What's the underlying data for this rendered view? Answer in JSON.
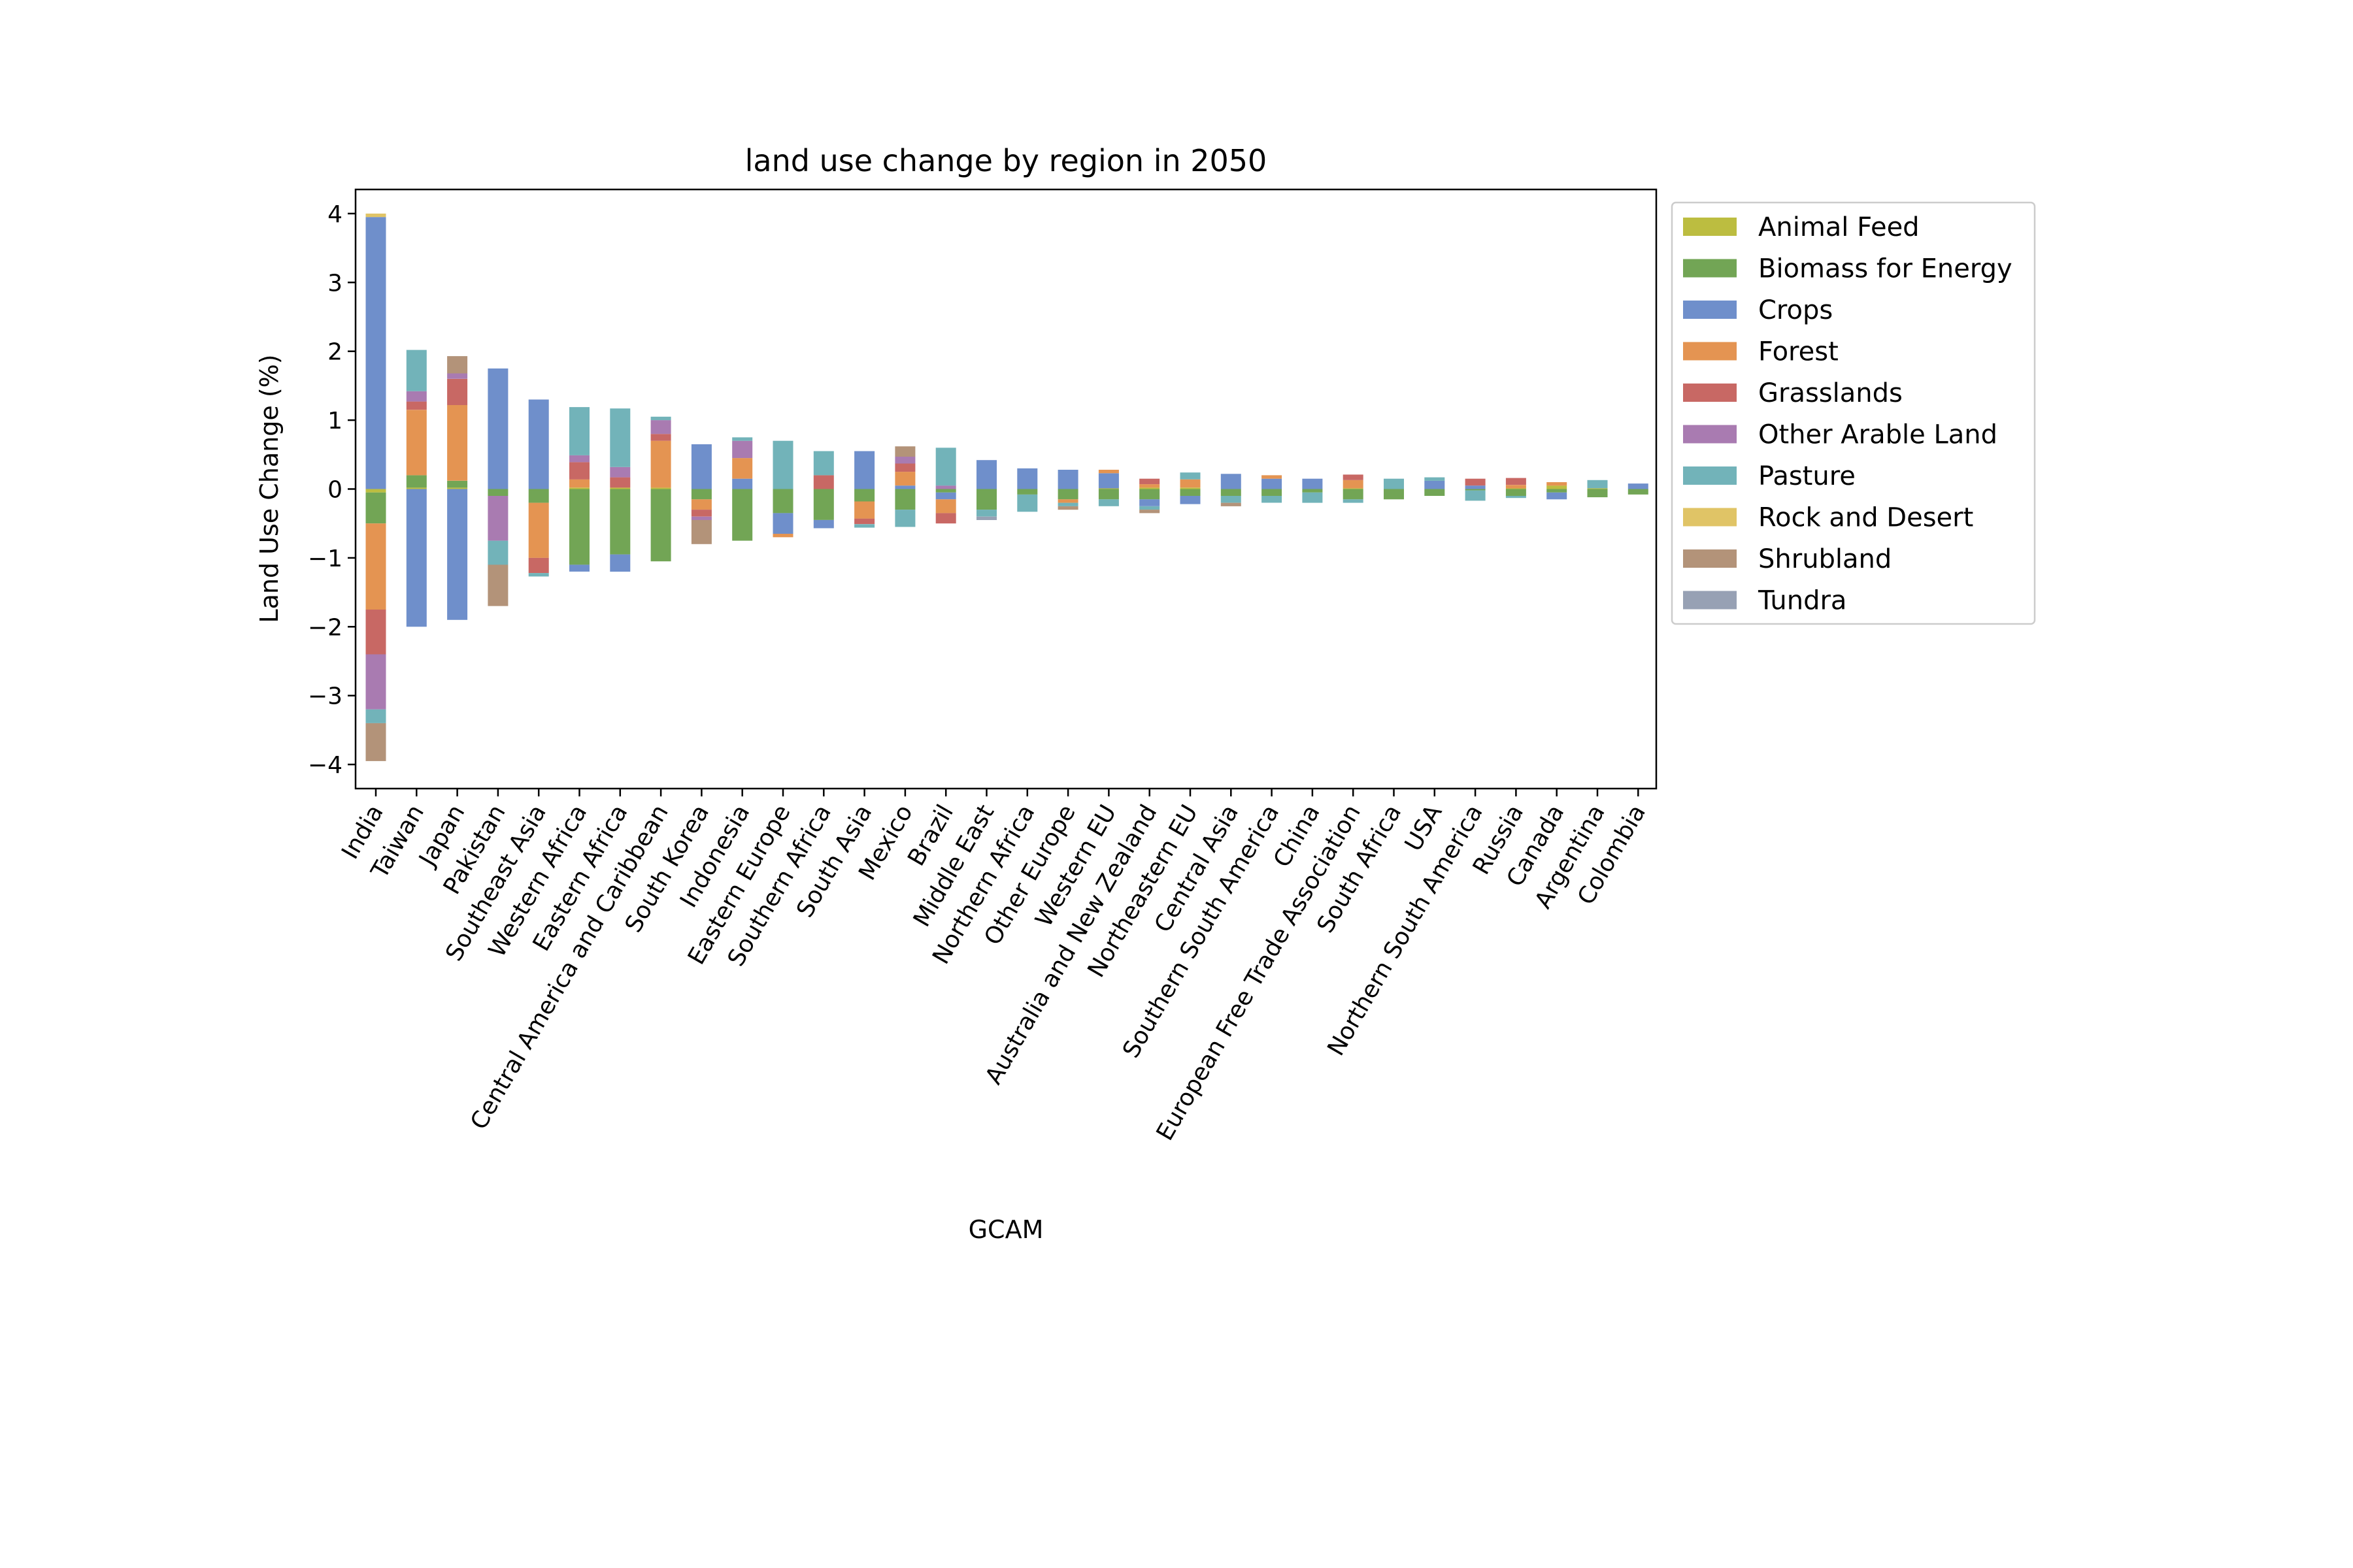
{
  "chart_data": {
    "type": "bar",
    "stacked": true,
    "title": "land use change by region in 2050",
    "xlabel": "GCAM",
    "ylabel": "Land Use Change (%)",
    "ylim": [
      -4.35,
      4.35
    ],
    "yticks": [
      -4,
      -3,
      -2,
      -1,
      0,
      1,
      2,
      3,
      4
    ],
    "ytick_labels": [
      "−4",
      "−3",
      "−2",
      "−1",
      "0",
      "1",
      "2",
      "3",
      "4"
    ],
    "grid": false,
    "legend_position": "outside-right-top",
    "categories": [
      "India",
      "Taiwan",
      "Japan",
      "Pakistan",
      "Southeast Asia",
      "Western Africa",
      "Eastern Africa",
      "Central America and Caribbean",
      "South Korea",
      "Indonesia",
      "Eastern Europe",
      "Southern Africa",
      "South Asia",
      "Mexico",
      "Brazil",
      "Middle East",
      "Northern Africa",
      "Other Europe",
      "Western EU",
      "Australia and New Zealand",
      "Northeastern EU",
      "Central Asia",
      "Southern South America",
      "China",
      "European Free Trade Association",
      "South Africa",
      "USA",
      "Northern South America",
      "Russia",
      "Canada",
      "Argentina",
      "Colombia"
    ],
    "series": [
      {
        "name": "Animal Feed",
        "color": "#bcbd40",
        "values": [
          -0.05,
          0.02,
          0.02,
          0.0,
          0.0,
          0.02,
          0.02,
          0.02,
          0.0,
          0.0,
          0.0,
          0.0,
          0.0,
          0.0,
          0.0,
          0.0,
          0.0,
          0.0,
          0.01,
          0.02,
          0.02,
          0.0,
          0.0,
          0.0,
          0.01,
          0.0,
          0.0,
          0.0,
          0.01,
          0.05,
          0.01,
          0.0
        ]
      },
      {
        "name": "Biomass for Energy",
        "color": "#72a555",
        "values": [
          -0.45,
          0.18,
          0.1,
          -0.1,
          -0.2,
          -1.1,
          -0.95,
          -1.05,
          -0.15,
          -0.75,
          -0.35,
          -0.45,
          -0.18,
          -0.3,
          -0.05,
          -0.3,
          -0.08,
          -0.15,
          -0.15,
          -0.15,
          -0.1,
          -0.1,
          -0.1,
          -0.05,
          -0.15,
          -0.15,
          -0.1,
          -0.02,
          -0.1,
          -0.05,
          -0.12,
          -0.08
        ]
      },
      {
        "name": "Crops",
        "color": "#6f8fcb",
        "values": [
          3.95,
          -2.0,
          -1.9,
          1.75,
          1.3,
          -0.1,
          -0.25,
          0.0,
          0.65,
          0.15,
          -0.3,
          -0.12,
          0.55,
          0.05,
          -0.1,
          0.42,
          0.3,
          0.28,
          0.22,
          -0.1,
          -0.12,
          0.22,
          0.15,
          0.15,
          0.0,
          0.0,
          0.12,
          0.05,
          0.0,
          -0.1,
          0.0,
          0.08
        ]
      },
      {
        "name": "Forest",
        "color": "#e49452",
        "values": [
          -1.25,
          0.95,
          1.1,
          0.0,
          -0.8,
          0.12,
          0.0,
          0.68,
          -0.15,
          0.3,
          -0.05,
          0.0,
          -0.25,
          0.2,
          -0.2,
          0.0,
          0.0,
          -0.05,
          0.05,
          0.05,
          0.12,
          0.0,
          0.05,
          0.0,
          0.12,
          0.0,
          0.0,
          0.0,
          0.05,
          0.05,
          0.0,
          0.0
        ]
      },
      {
        "name": "Grasslands",
        "color": "#c86864",
        "values": [
          -0.65,
          0.12,
          0.38,
          0.0,
          -0.22,
          0.25,
          0.15,
          0.1,
          -0.1,
          0.0,
          0.0,
          0.2,
          -0.08,
          0.12,
          -0.15,
          0.0,
          0.0,
          0.0,
          0.0,
          0.08,
          0.0,
          0.0,
          0.0,
          0.0,
          0.08,
          0.0,
          0.0,
          0.1,
          0.1,
          0.0,
          0.0,
          0.0
        ]
      },
      {
        "name": "Other Arable Land",
        "color": "#a97bb1",
        "values": [
          -0.8,
          0.15,
          0.08,
          -0.65,
          0.0,
          0.1,
          0.15,
          0.2,
          -0.05,
          0.25,
          0.0,
          0.0,
          0.0,
          0.1,
          0.05,
          0.0,
          0.0,
          0.0,
          0.0,
          0.0,
          0.0,
          0.0,
          0.0,
          0.0,
          0.0,
          0.0,
          0.0,
          0.0,
          0.0,
          0.0,
          0.0,
          0.0
        ]
      },
      {
        "name": "Pasture",
        "color": "#72b3b9",
        "values": [
          -0.2,
          0.6,
          0.0,
          -0.35,
          -0.05,
          0.7,
          0.85,
          0.05,
          0.0,
          0.05,
          0.7,
          0.35,
          -0.05,
          -0.25,
          0.55,
          -0.1,
          -0.25,
          -0.05,
          -0.1,
          -0.05,
          0.1,
          -0.1,
          -0.1,
          -0.15,
          -0.05,
          0.15,
          0.05,
          -0.15,
          -0.03,
          0.0,
          0.12,
          0.0
        ]
      },
      {
        "name": "Rock and Desert",
        "color": "#e0c466",
        "values": [
          0.05,
          0.0,
          0.0,
          0.0,
          0.0,
          0.0,
          0.0,
          0.0,
          0.0,
          0.0,
          0.0,
          0.0,
          0.0,
          0.0,
          0.0,
          0.0,
          0.0,
          0.0,
          0.0,
          0.0,
          0.0,
          0.0,
          0.0,
          0.0,
          0.0,
          0.0,
          0.0,
          0.0,
          0.0,
          0.0,
          0.0,
          0.0
        ]
      },
      {
        "name": "Shrubland",
        "color": "#b39379",
        "values": [
          -0.55,
          0.0,
          0.25,
          -0.6,
          0.0,
          0.0,
          0.0,
          0.0,
          -0.35,
          0.0,
          0.0,
          0.0,
          0.0,
          0.15,
          0.0,
          0.0,
          0.0,
          -0.05,
          0.0,
          -0.05,
          0.0,
          -0.05,
          0.0,
          0.0,
          0.0,
          0.0,
          0.0,
          0.0,
          0.0,
          0.0,
          0.0,
          0.0
        ]
      },
      {
        "name": "Tundra",
        "color": "#97a1b4",
        "values": [
          0.0,
          0.0,
          0.0,
          0.0,
          0.0,
          0.0,
          0.0,
          0.0,
          0.0,
          0.0,
          0.0,
          0.0,
          0.0,
          0.0,
          0.0,
          -0.05,
          0.0,
          0.0,
          0.0,
          0.0,
          0.0,
          0.0,
          0.0,
          0.0,
          0.0,
          0.0,
          0.0,
          0.0,
          0.0,
          0.0,
          0.0,
          0.0
        ]
      }
    ]
  }
}
